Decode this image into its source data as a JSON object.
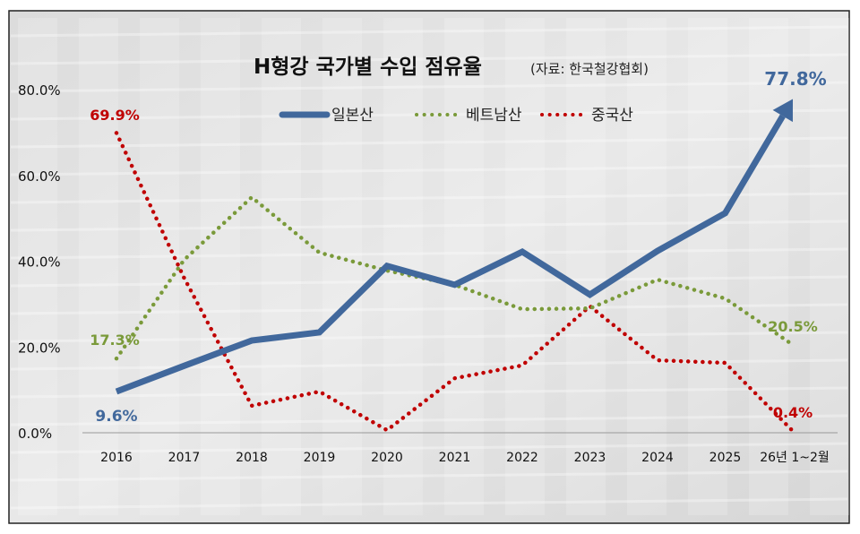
{
  "chart_data": {
    "type": "line",
    "title": "H형강 국가별 수입 점유율",
    "subtitle": "(자료: 한국철강협회)",
    "categories": [
      "2016",
      "2017",
      "2018",
      "2019",
      "2020",
      "2021",
      "2022",
      "2023",
      "2024",
      "2025",
      "26년 1~2월"
    ],
    "yticks": [
      "0.0%",
      "20.0%",
      "40.0%",
      "60.0%",
      "80.0%"
    ],
    "ylim": [
      0,
      80
    ],
    "legend_position": "top-center",
    "series": [
      {
        "name": "일본산",
        "color": "#41689c",
        "style": "solid",
        "values": [
          9.6,
          15.6,
          21.5,
          23.4,
          38.9,
          34.5,
          42.2,
          32.2,
          42.4,
          51.2,
          77.8
        ]
      },
      {
        "name": "베트남산",
        "color": "#7a9a3a",
        "style": "dotted",
        "values": [
          17.3,
          40.3,
          54.9,
          42.0,
          37.8,
          34.5,
          28.8,
          29.0,
          35.7,
          31.3,
          20.5
        ]
      },
      {
        "name": "중국산",
        "color": "#c00000",
        "style": "dotted",
        "values": [
          69.9,
          36.1,
          6.3,
          9.6,
          0.6,
          12.7,
          15.7,
          29.5,
          16.9,
          16.3,
          0.4
        ]
      }
    ],
    "annotations": [
      {
        "text": "77.8%",
        "series": 0,
        "index": 10
      },
      {
        "text": "9.6%",
        "series": 0,
        "index": 0
      },
      {
        "text": "17.3%",
        "series": 1,
        "index": 0
      },
      {
        "text": "20.5%",
        "series": 1,
        "index": 10
      },
      {
        "text": "69.9%",
        "series": 2,
        "index": 0
      },
      {
        "text": "0.4%",
        "series": 2,
        "index": 10
      }
    ]
  }
}
